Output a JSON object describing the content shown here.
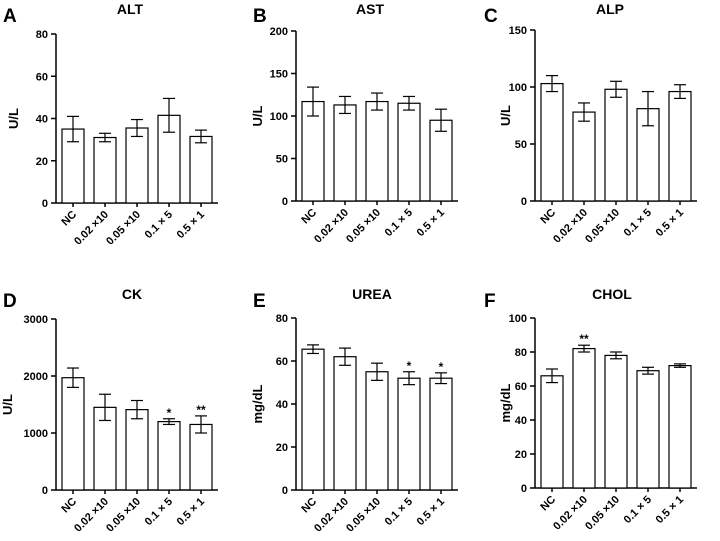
{
  "chart_data": [
    {
      "type": "bar",
      "letter": "A",
      "title": "ALT",
      "ylabel": "U/L",
      "categories": [
        "NC",
        "0.02 ×10",
        "0.05 ×10",
        "0.1 × 5",
        "0.5 × 1"
      ],
      "values": [
        35,
        31,
        35.5,
        41.5,
        31.5
      ],
      "errors": [
        6,
        2,
        4,
        8,
        3
      ],
      "significance": [
        "",
        "",
        "",
        "",
        ""
      ],
      "ylim": [
        0,
        80
      ],
      "yticks": [
        0,
        20,
        40,
        60,
        80
      ]
    },
    {
      "type": "bar",
      "letter": "B",
      "title": "AST",
      "ylabel": "U/L",
      "categories": [
        "NC",
        "0.02 ×10",
        "0.05 ×10",
        "0.1 × 5",
        "0.5 × 1"
      ],
      "values": [
        117,
        113,
        117,
        115,
        95
      ],
      "errors": [
        17,
        10,
        10,
        8,
        13
      ],
      "significance": [
        "",
        "",
        "",
        "",
        ""
      ],
      "ylim": [
        0,
        200
      ],
      "yticks": [
        0,
        50,
        100,
        150,
        200
      ]
    },
    {
      "type": "bar",
      "letter": "C",
      "title": "ALP",
      "ylabel": "U/L",
      "categories": [
        "NC",
        "0.02 ×10",
        "0.05 ×10",
        "0.1 × 5",
        "0.5 × 1"
      ],
      "values": [
        103,
        78,
        98,
        81,
        96
      ],
      "errors": [
        7,
        8,
        7,
        15,
        6
      ],
      "significance": [
        "",
        "",
        "",
        "",
        ""
      ],
      "ylim": [
        0,
        150
      ],
      "yticks": [
        0,
        50,
        100,
        150
      ]
    },
    {
      "type": "bar",
      "letter": "D",
      "title": "CK",
      "ylabel": "U/L",
      "categories": [
        "NC",
        "0.02 ×10",
        "0.05 ×10",
        "0.1 × 5",
        "0.5 × 1"
      ],
      "values": [
        1970,
        1450,
        1410,
        1200,
        1150
      ],
      "errors": [
        170,
        230,
        160,
        50,
        150
      ],
      "significance": [
        "",
        "",
        "",
        "*",
        "**"
      ],
      "ylim": [
        0,
        3000
      ],
      "yticks": [
        0,
        1000,
        2000,
        3000
      ]
    },
    {
      "type": "bar",
      "letter": "E",
      "title": "UREA",
      "ylabel": "mg/dL",
      "categories": [
        "NC",
        "0.02 ×10",
        "0.05 ×10",
        "0.1 × 5",
        "0.5 × 1"
      ],
      "values": [
        65.5,
        62,
        55,
        52,
        52
      ],
      "errors": [
        2,
        4,
        4,
        3,
        2.5
      ],
      "significance": [
        "",
        "",
        "",
        "*",
        "*"
      ],
      "ylim": [
        0,
        80
      ],
      "yticks": [
        0,
        20,
        40,
        60,
        80
      ]
    },
    {
      "type": "bar",
      "letter": "F",
      "title": "CHOL",
      "ylabel": "mg/dL",
      "categories": [
        "NC",
        "0.02 ×10",
        "0.05 ×10",
        "0.1 × 5",
        "0.5 × 1"
      ],
      "values": [
        66,
        82,
        78,
        69,
        72
      ],
      "errors": [
        4,
        2,
        2,
        2,
        1
      ],
      "significance": [
        "",
        "**",
        "",
        "",
        ""
      ],
      "ylim": [
        0,
        100
      ],
      "yticks": [
        0,
        20,
        40,
        60,
        80,
        100
      ]
    }
  ]
}
